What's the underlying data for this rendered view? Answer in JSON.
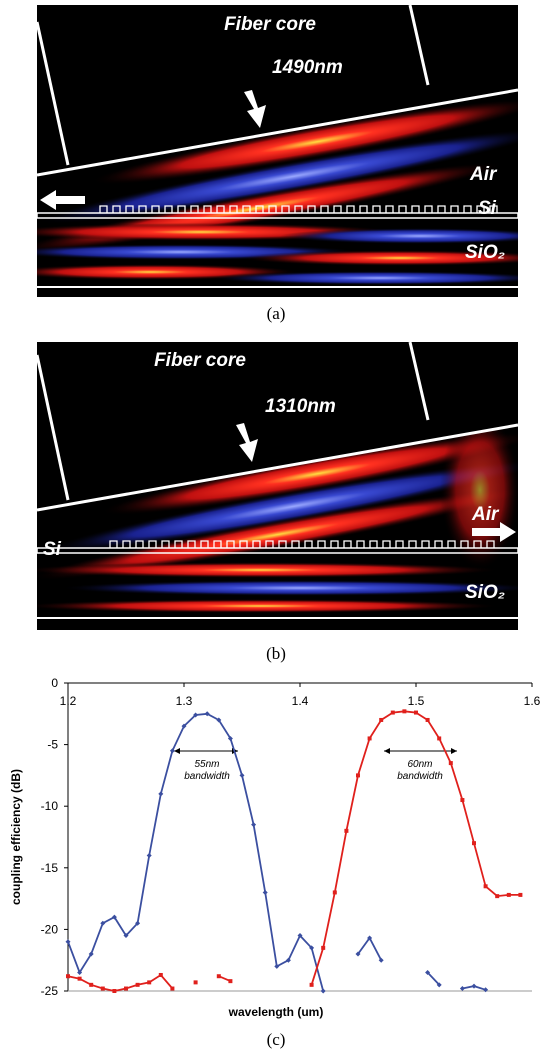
{
  "panel_a": {
    "fiber_core": "Fiber core",
    "wavelength": "1490nm",
    "air": "Air",
    "si": "Si",
    "sio2": "SiO₂",
    "caption": "(a)"
  },
  "panel_b": {
    "fiber_core": "Fiber core",
    "wavelength": "1310nm",
    "air": "Air",
    "si": "Si",
    "sio2": "SiO₂",
    "caption": "(b)"
  },
  "chart_data": {
    "type": "line",
    "xlabel": "wavelength (um)",
    "ylabel": "coupling efficiency (dB)",
    "caption": "(c)",
    "xlim": [
      1.2,
      1.6
    ],
    "xticks": [
      1.2,
      1.3,
      1.4,
      1.5,
      1.6
    ],
    "ylim": [
      -25,
      0
    ],
    "yticks": [
      0,
      -5,
      -10,
      -15,
      -20,
      -25
    ],
    "annotations": [
      {
        "label": "55nm",
        "sub": "bandwidth"
      },
      {
        "label": "60nm",
        "sub": "bandwidth"
      }
    ],
    "x": [
      1.2,
      1.21,
      1.22,
      1.23,
      1.24,
      1.25,
      1.26,
      1.27,
      1.28,
      1.29,
      1.3,
      1.31,
      1.32,
      1.33,
      1.34,
      1.35,
      1.36,
      1.37,
      1.38,
      1.39,
      1.4,
      1.41,
      1.42,
      1.43,
      1.44,
      1.45,
      1.46,
      1.47,
      1.48,
      1.49,
      1.5,
      1.51,
      1.52,
      1.53,
      1.54,
      1.55,
      1.56,
      1.57,
      1.58,
      1.59
    ],
    "series": [
      {
        "color": "#3b4fa0",
        "marker": "diamond",
        "values": [
          -21,
          -23.5,
          -22,
          -19.5,
          -19,
          -20.5,
          -19.5,
          -14,
          -9,
          -5.5,
          -3.5,
          -2.6,
          -2.5,
          -3,
          -4.5,
          -7.5,
          -11.5,
          -17,
          -23,
          -22.5,
          -20.5,
          -21.5,
          -25,
          null,
          null,
          -22,
          -20.7,
          -22.5,
          null,
          null,
          null,
          -23.5,
          -24.5,
          null,
          -24.8,
          -24.6,
          -24.9,
          null,
          null,
          null
        ]
      },
      {
        "color": "#e0201c",
        "marker": "square",
        "values": [
          -23.8,
          -24,
          -24.5,
          -24.8,
          -25,
          -24.8,
          -24.5,
          -24.3,
          -23.7,
          -24.8,
          null,
          -24.3,
          null,
          -23.8,
          -24.2,
          null,
          null,
          null,
          null,
          null,
          null,
          -24.5,
          -21.5,
          -17,
          -12,
          -7.5,
          -4.5,
          -3,
          -2.4,
          -2.3,
          -2.4,
          -3,
          -4.5,
          -6.5,
          -9.5,
          -13,
          -16.5,
          -17.3,
          -17.2,
          -17.2
        ]
      }
    ]
  }
}
